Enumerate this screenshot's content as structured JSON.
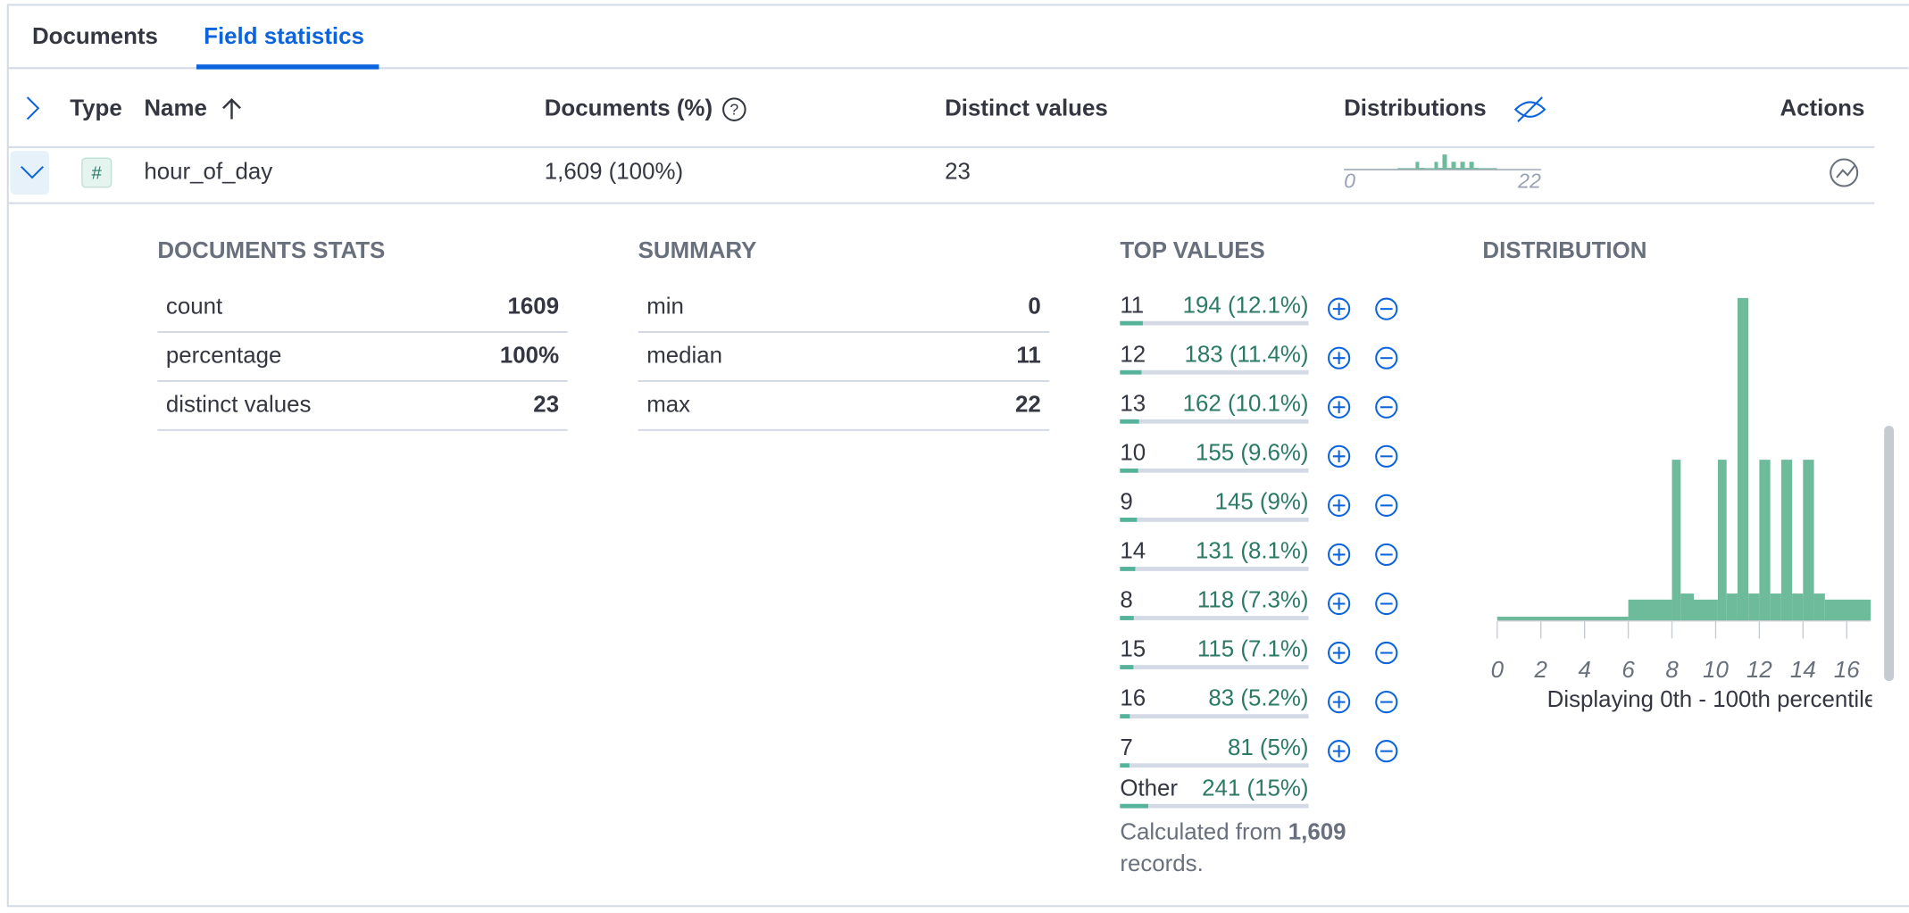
{
  "tabs": [
    "Documents",
    "Field statistics"
  ],
  "columns": {
    "type": "Type",
    "name": "Name",
    "documents": "Documents (%)",
    "distinct": "Distinct values",
    "distributions": "Distributions",
    "actions": "Actions"
  },
  "row": {
    "type_icon": "#",
    "name": "hour_of_day",
    "documents": "1,609 (100%)",
    "distinct": "23",
    "mini_distribution": {
      "type": "bar",
      "xlim": [
        0,
        22
      ],
      "xticks": [
        0,
        22
      ]
    }
  },
  "documents_stats": {
    "title": "DOCUMENTS STATS",
    "rows": [
      [
        "count",
        "1609"
      ],
      [
        "percentage",
        "100%"
      ],
      [
        "distinct values",
        "23"
      ]
    ]
  },
  "summary": {
    "title": "SUMMARY",
    "rows": [
      [
        "min",
        "0"
      ],
      [
        "median",
        "11"
      ],
      [
        "max",
        "22"
      ]
    ]
  },
  "top_values": {
    "title": "TOP VALUES",
    "rows": [
      {
        "value": "11",
        "count": 194,
        "percent": 12.1,
        "label": "194 (12.1%)"
      },
      {
        "value": "12",
        "count": 183,
        "percent": 11.4,
        "label": "183 (11.4%)"
      },
      {
        "value": "13",
        "count": 162,
        "percent": 10.1,
        "label": "162 (10.1%)"
      },
      {
        "value": "10",
        "count": 155,
        "percent": 9.6,
        "label": "155 (9.6%)"
      },
      {
        "value": "9",
        "count": 145,
        "percent": 9,
        "label": "145 (9%)"
      },
      {
        "value": "14",
        "count": 131,
        "percent": 8.1,
        "label": "131 (8.1%)"
      },
      {
        "value": "8",
        "count": 118,
        "percent": 7.3,
        "label": "118 (7.3%)"
      },
      {
        "value": "15",
        "count": 115,
        "percent": 7.1,
        "label": "115 (7.1%)"
      },
      {
        "value": "16",
        "count": 83,
        "percent": 5.2,
        "label": "83 (5.2%)"
      },
      {
        "value": "7",
        "count": 81,
        "percent": 5,
        "label": "81 (5%)"
      }
    ],
    "other": {
      "value": "Other",
      "count": 241,
      "percent": 15,
      "label": "241 (15%)"
    },
    "footer": {
      "before": "Calculated from",
      "count": "1,609",
      "after": "records."
    }
  },
  "distribution": {
    "title": "DISTRIBUTION",
    "type": "bar",
    "color": "#6dbb9b",
    "bins": [
      0,
      6,
      8,
      8.4,
      9,
      10.1,
      10.5,
      11,
      11.5,
      12,
      12.5,
      13,
      13.5,
      14,
      14.5,
      15,
      17.1
    ],
    "values": [
      3,
      17,
      132,
      22,
      17,
      132,
      22,
      265,
      22,
      132,
      22,
      132,
      22,
      132,
      22,
      17
    ],
    "xlim": [
      0,
      17.1
    ],
    "xticks": [
      0,
      2,
      4,
      6,
      8,
      10,
      12,
      14,
      16
    ],
    "caption": "Displaying 0th - 100th percentile"
  }
}
